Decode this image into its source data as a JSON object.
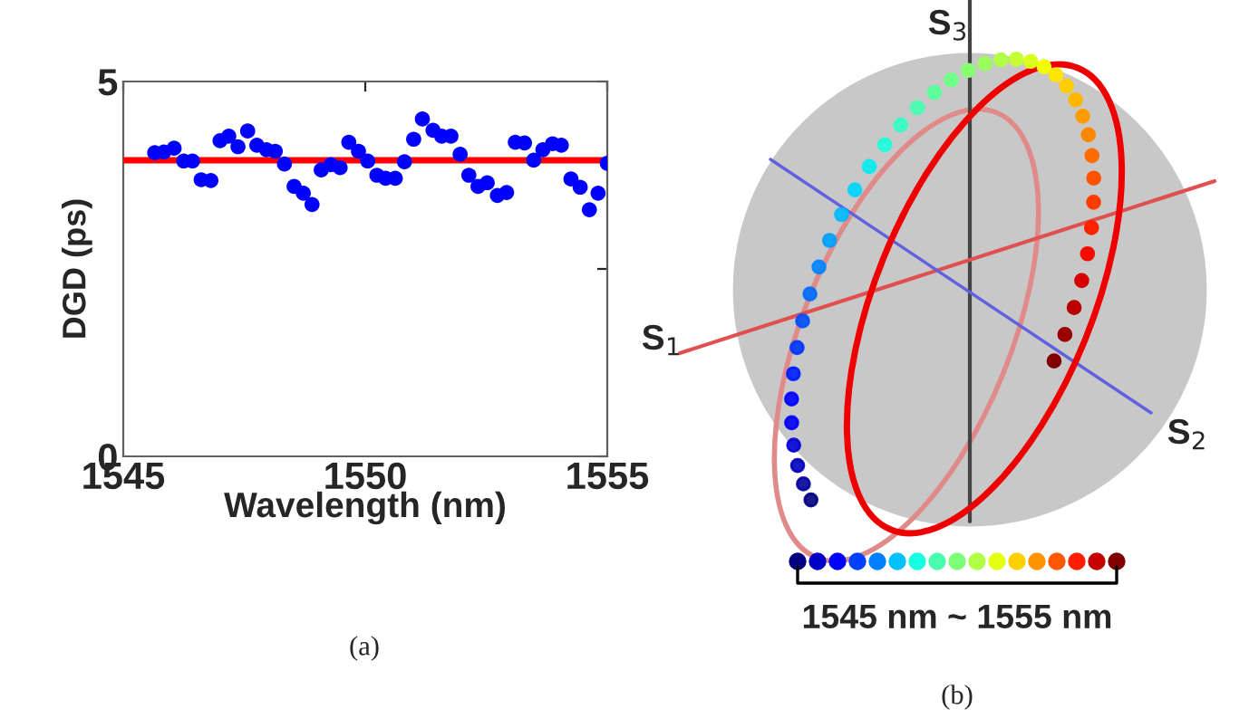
{
  "chart_data": [
    {
      "type": "scatter",
      "xlabel": "Wavelength (nm)",
      "ylabel": "DGD (ps)",
      "x": [
        1545.65,
        1545.84,
        1546.05,
        1546.25,
        1546.43,
        1546.61,
        1546.81,
        1547.0,
        1547.18,
        1547.37,
        1547.57,
        1547.76,
        1547.96,
        1548.14,
        1548.33,
        1548.53,
        1548.72,
        1548.9,
        1549.09,
        1549.29,
        1549.48,
        1549.66,
        1549.86,
        1550.05,
        1550.24,
        1550.42,
        1550.62,
        1550.81,
        1551.0,
        1551.18,
        1551.4,
        1551.58,
        1551.77,
        1551.96,
        1552.14,
        1552.33,
        1552.52,
        1552.73,
        1552.92,
        1553.1,
        1553.29,
        1553.48,
        1553.67,
        1553.87,
        1554.05,
        1554.25,
        1554.44,
        1554.63,
        1554.81,
        1555.0
      ],
      "series": [
        {
          "color": "#0000ff",
          "values": [
            4.05,
            4.06,
            4.11,
            3.94,
            3.94,
            3.69,
            3.68,
            4.21,
            4.27,
            4.13,
            4.34,
            4.15,
            4.09,
            4.07,
            3.9,
            3.6,
            3.51,
            3.36,
            3.82,
            3.89,
            3.85,
            4.19,
            4.07,
            3.94,
            3.75,
            3.71,
            3.71,
            3.93,
            4.23,
            4.5,
            4.35,
            4.27,
            4.27,
            4.03,
            3.75,
            3.6,
            3.65,
            3.48,
            3.52,
            4.19,
            4.18,
            3.95,
            4.09,
            4.17,
            4.15,
            3.7,
            3.59,
            3.29,
            3.51,
            3.91
          ]
        }
      ],
      "marker": "circle",
      "grid": false,
      "legend": false,
      "xlim": [
        1545,
        1555
      ],
      "xticks": [
        1545,
        1550,
        1555
      ],
      "ylim": [
        0,
        5
      ],
      "yticks": [
        0,
        {
          "value": 2.5,
          "label": null
        },
        5
      ],
      "ref_lines": [
        {
          "axis": "y",
          "value": 3.95,
          "color": "#ff0000"
        }
      ],
      "annotations": [
        "(a)"
      ]
    },
    {
      "type": "other",
      "annotations": [
        "S$_{3}$",
        "S$_{1}$",
        "S$_{2}$",
        "1545 nm ~ 1555 nm",
        "(b)"
      ]
    }
  ]
}
